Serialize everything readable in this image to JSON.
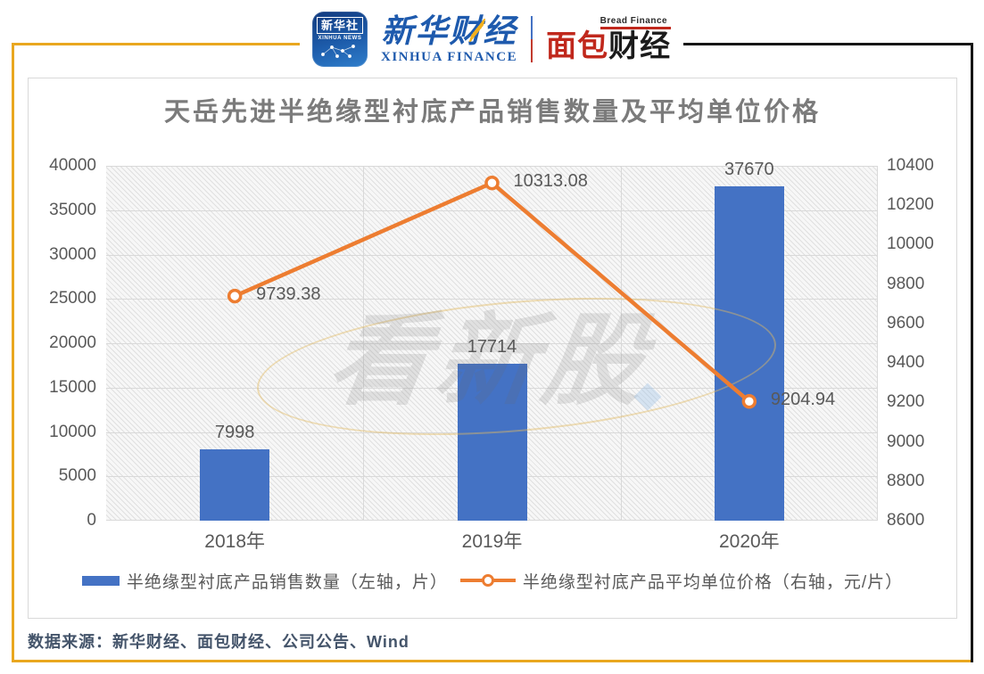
{
  "header": {
    "xinhua_icon": {
      "title": "新华社",
      "subtitle": "XINHUA NEWS"
    },
    "xinhua_finance": {
      "cn": "新华财经",
      "en": "XINHUA FINANCE"
    },
    "bread_finance": {
      "en": "Bread Finance",
      "cn_red": "面包",
      "cn_black": "财经"
    }
  },
  "watermark": {
    "text": "看新股"
  },
  "footer": {
    "source": "数据来源：新华财经、面包财经、公司公告、Wind"
  },
  "colors": {
    "bar": "#4472C4",
    "line": "#ED7D31",
    "frame_gold": "#E9A71F",
    "frame_dark": "#161616",
    "grid": "#D9D9D9",
    "tick_text": "#595959",
    "title_text": "#7B7B7B",
    "footer_text": "#44546A"
  },
  "chart_data": {
    "type": "bar",
    "subtype": "combo-bar-line",
    "title": "天岳先进半绝缘型衬底产品销售数量及平均单位价格",
    "categories": [
      "2018年",
      "2019年",
      "2020年"
    ],
    "series": [
      {
        "name": "半绝缘型衬底产品销售数量（左轴，片）",
        "type": "bar",
        "axis": "left",
        "color": "#4472C4",
        "values": [
          7998,
          17714,
          37670
        ],
        "labels": [
          "7998",
          "17714",
          "37670"
        ]
      },
      {
        "name": "半绝缘型衬底产品平均单位价格（右轴，元/片）",
        "type": "line",
        "axis": "right",
        "color": "#ED7D31",
        "values": [
          9739.38,
          10313.08,
          9204.94
        ],
        "labels": [
          "9739.38",
          "10313.08",
          "9204.94"
        ]
      }
    ],
    "left_axis": {
      "min": 0,
      "max": 40000,
      "step": 5000,
      "tick_labels_top_down": [
        "40000",
        "35000",
        "30000",
        "25000",
        "20000",
        "15000",
        "10000",
        "5000",
        "0"
      ]
    },
    "right_axis": {
      "min": 8600,
      "max": 10400,
      "step": 200,
      "tick_labels_top_down": [
        "10400",
        "10200",
        "10000",
        "9800",
        "9600",
        "9400",
        "9200",
        "9000",
        "8800",
        "8600"
      ]
    },
    "grid": "horizontal + category boundaries",
    "legend_position": "bottom",
    "plot_background": "diagonal-hatch"
  }
}
